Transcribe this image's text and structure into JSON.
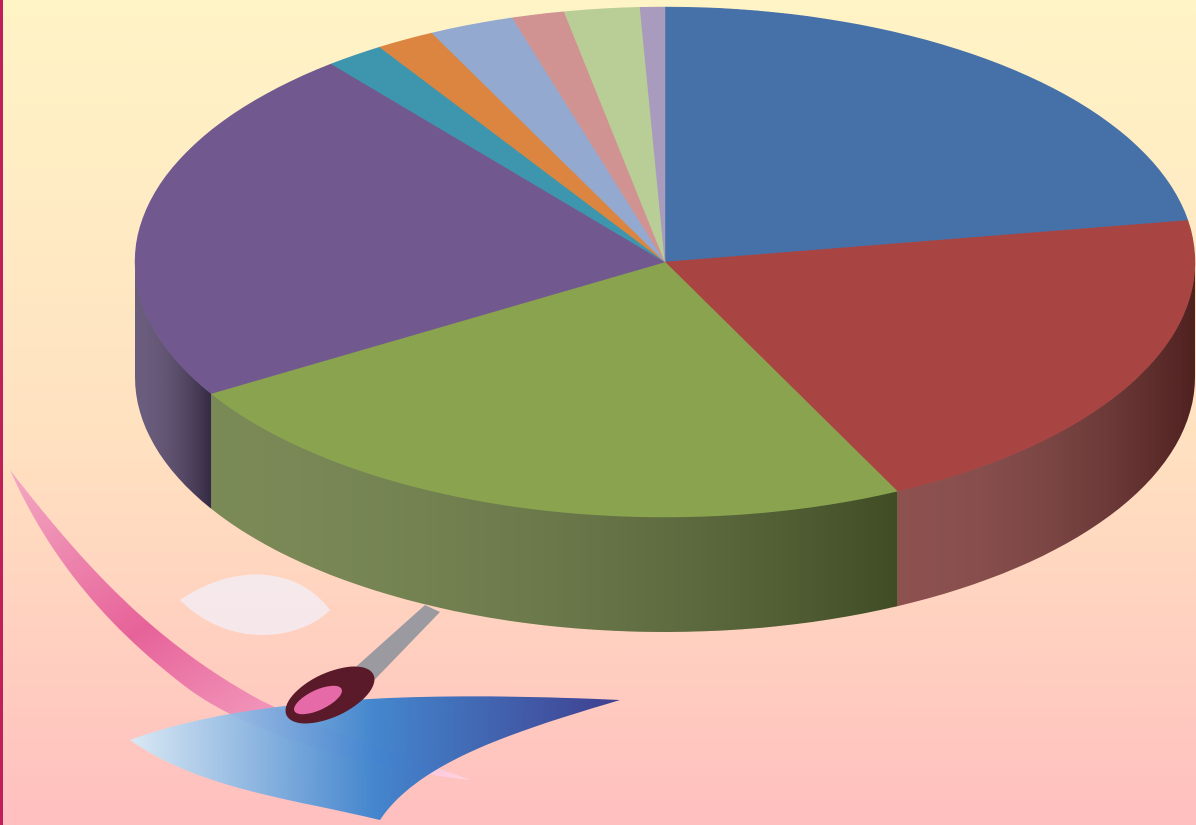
{
  "chart_data": {
    "type": "pie3d",
    "values": [
      22.4,
      20.4,
      23.6,
      22.8,
      1.8,
      1.8,
      2.6,
      1.6,
      2.3,
      0.75
    ],
    "colors": [
      "#4571a8",
      "#a84543",
      "#89a34e",
      "#71598f",
      "#3d96ad",
      "#db8540",
      "#93a9d0",
      "#d19392",
      "#b9cd96",
      "#a99bbd"
    ]
  }
}
